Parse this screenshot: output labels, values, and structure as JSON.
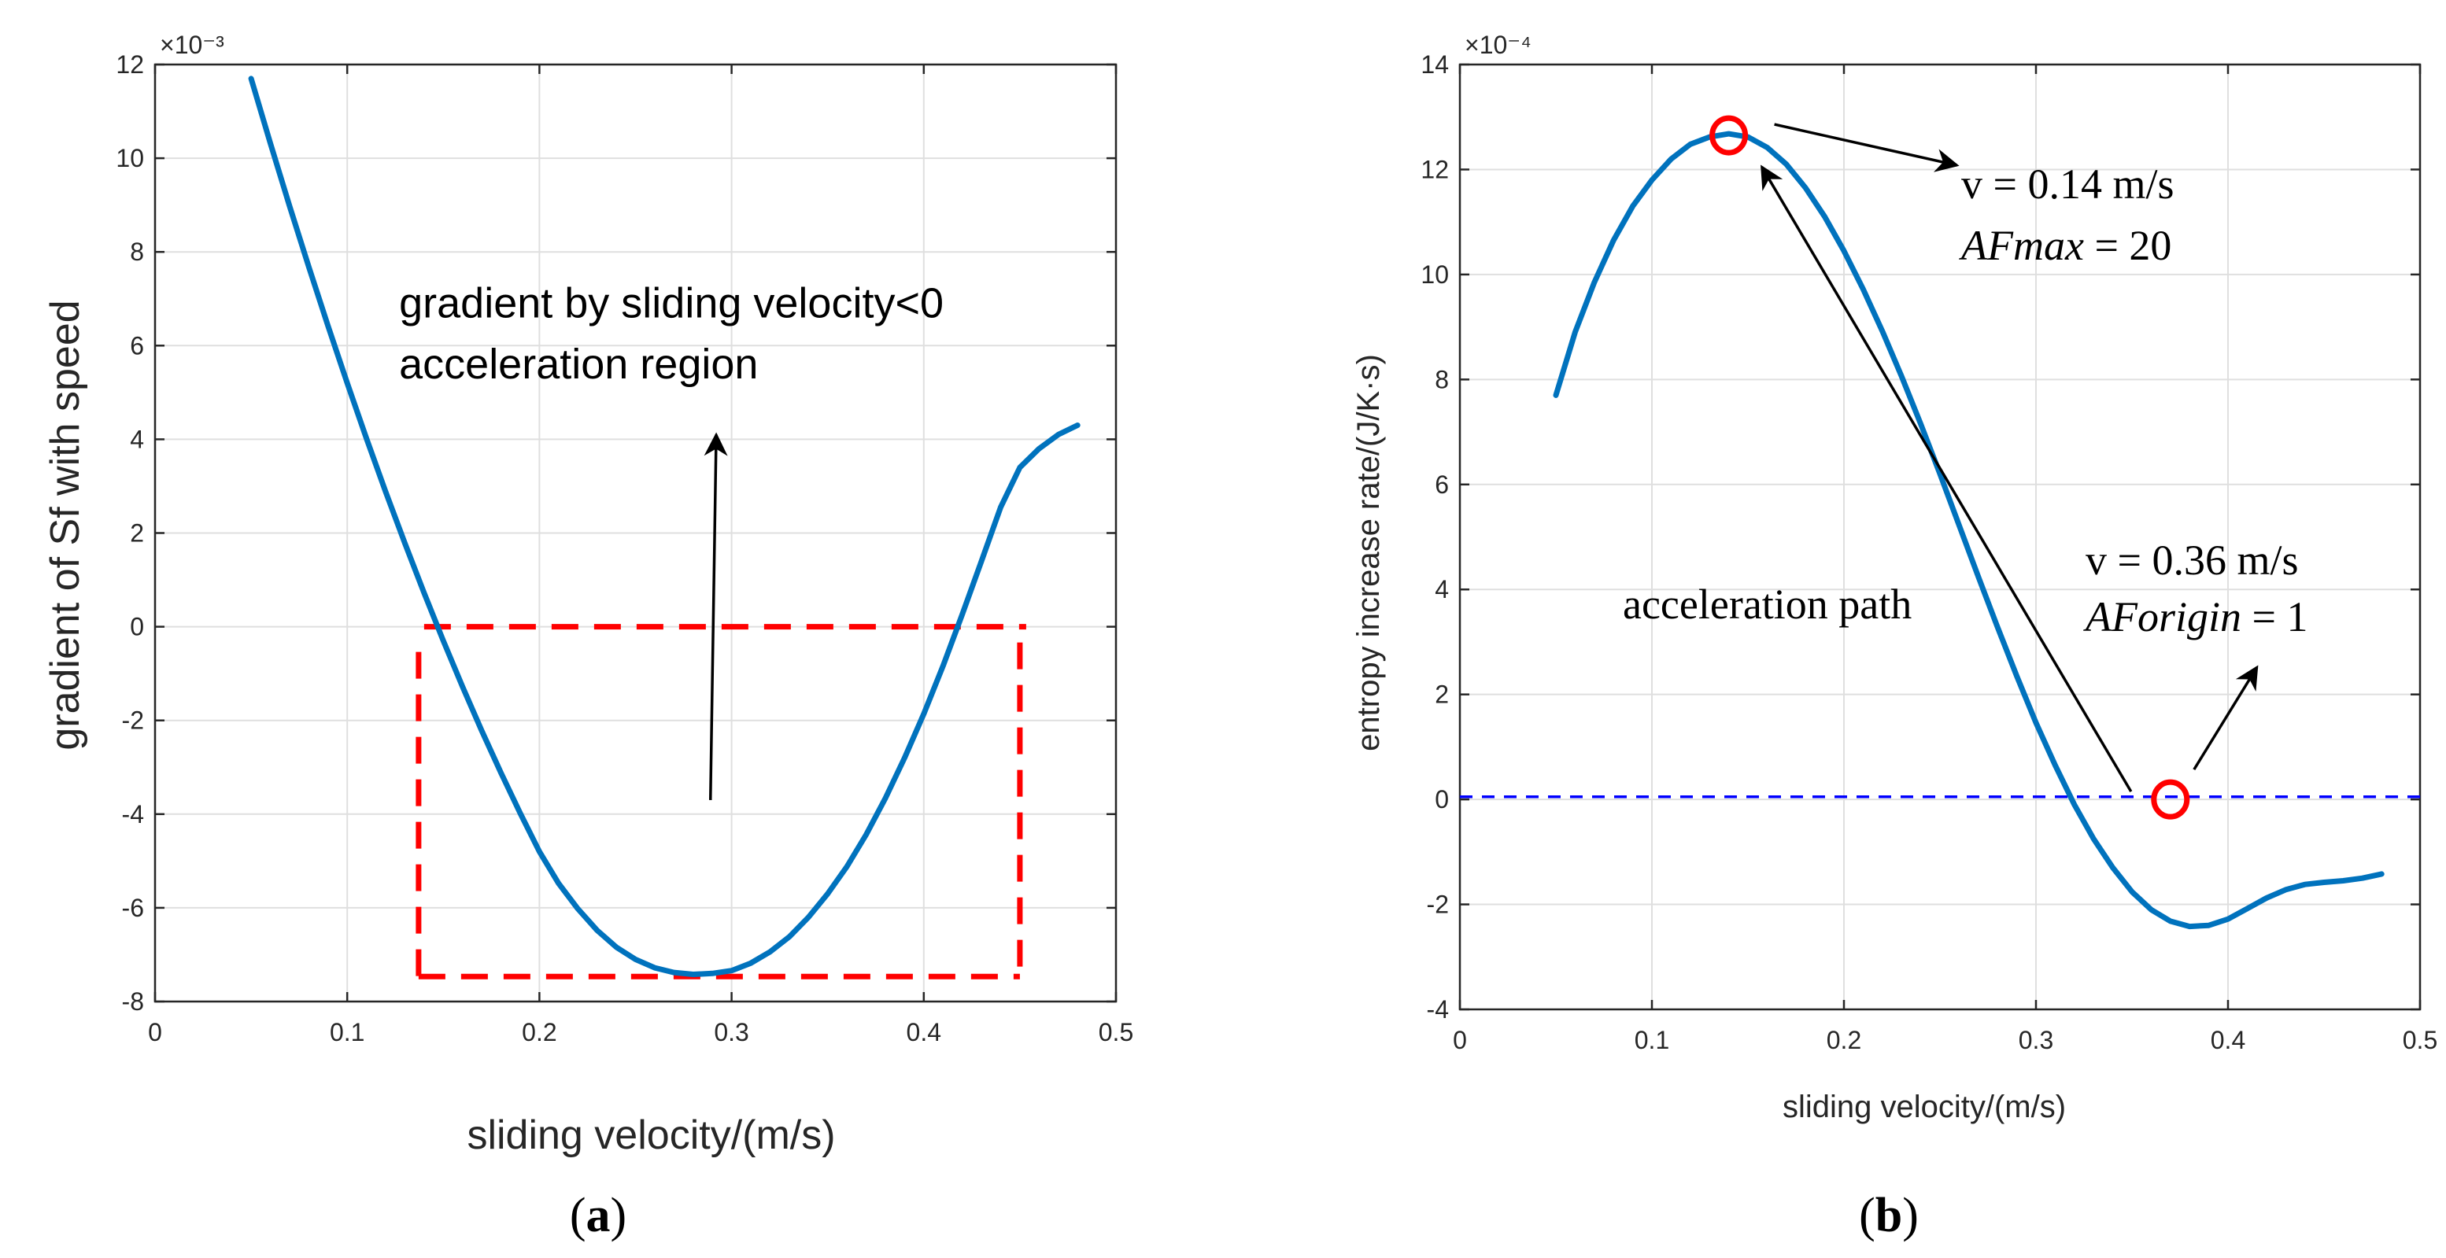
{
  "chart_data": [
    {
      "type": "line",
      "panel_label": "(a)",
      "xlabel": "sliding velocity/(m/s)",
      "ylabel": "gradient of Sf with speed",
      "xlim": [
        0,
        0.5
      ],
      "ylim": [
        -8,
        12
      ],
      "y_scale_label": "×10⁻³",
      "xticks": [
        "0",
        "0.1",
        "0.2",
        "0.3",
        "0.4",
        "0.5"
      ],
      "yticks": [
        "-8",
        "-6",
        "-4",
        "-2",
        "0",
        "2",
        "4",
        "6",
        "8",
        "10",
        "12"
      ],
      "grid": true,
      "series": [
        {
          "name": "gradient",
          "color": "#0072BD",
          "x": [
            0.05,
            0.06,
            0.07,
            0.08,
            0.09,
            0.1,
            0.11,
            0.12,
            0.13,
            0.14,
            0.15,
            0.16,
            0.17,
            0.18,
            0.19,
            0.2,
            0.21,
            0.22,
            0.23,
            0.24,
            0.25,
            0.26,
            0.27,
            0.28,
            0.29,
            0.3,
            0.31,
            0.32,
            0.33,
            0.34,
            0.35,
            0.36,
            0.37,
            0.38,
            0.39,
            0.4,
            0.41,
            0.42,
            0.43,
            0.44,
            0.45,
            0.46,
            0.47,
            0.48
          ],
          "values": [
            11.7,
            10.32,
            8.98,
            7.68,
            6.42,
            5.2,
            4.02,
            2.88,
            1.78,
            0.72,
            -0.3,
            -1.28,
            -2.22,
            -3.12,
            -3.98,
            -4.8,
            -5.48,
            -6.02,
            -6.48,
            -6.84,
            -7.1,
            -7.28,
            -7.38,
            -7.42,
            -7.4,
            -7.34,
            -7.18,
            -6.94,
            -6.62,
            -6.2,
            -5.7,
            -5.12,
            -4.44,
            -3.66,
            -2.8,
            -1.86,
            -0.84,
            0.26,
            1.4,
            2.55,
            3.4,
            3.8,
            4.1,
            4.3
          ]
        }
      ],
      "highlight_box": {
        "x": [
          0.14,
          0.45
        ],
        "y": [
          -7.4,
          0
        ],
        "color": "#ff0000"
      },
      "annotations": [
        {
          "text": "gradient by sliding velocity<0",
          "x": 0.127,
          "y": 6.6
        },
        {
          "text": "acceleration region",
          "x": 0.127,
          "y": 5.3
        }
      ],
      "arrow": {
        "from": [
          0.289,
          -3.7
        ],
        "to": [
          0.292,
          4.1
        ]
      }
    },
    {
      "type": "line",
      "panel_label": "(b)",
      "xlabel": "sliding velocity/(m/s)",
      "ylabel": "entropy increase rate/(J/K·s)",
      "xlim": [
        0,
        0.5
      ],
      "ylim": [
        -4,
        14
      ],
      "y_scale_label": "×10⁻⁴",
      "xticks": [
        "0",
        "0.1",
        "0.2",
        "0.3",
        "0.4",
        "0.5"
      ],
      "yticks": [
        "-4",
        "-2",
        "0",
        "2",
        "4",
        "6",
        "8",
        "10",
        "12",
        "14"
      ],
      "grid": true,
      "series": [
        {
          "name": "entropy rate",
          "color": "#0072BD",
          "x": [
            0.05,
            0.06,
            0.07,
            0.08,
            0.09,
            0.1,
            0.11,
            0.12,
            0.13,
            0.14,
            0.15,
            0.16,
            0.17,
            0.18,
            0.19,
            0.2,
            0.21,
            0.22,
            0.23,
            0.24,
            0.25,
            0.26,
            0.27,
            0.28,
            0.29,
            0.3,
            0.31,
            0.32,
            0.33,
            0.34,
            0.35,
            0.36,
            0.37,
            0.38,
            0.39,
            0.4,
            0.41,
            0.42,
            0.43,
            0.44,
            0.45,
            0.46,
            0.47,
            0.48
          ],
          "values": [
            7.7,
            8.9,
            9.85,
            10.65,
            11.3,
            11.8,
            12.2,
            12.48,
            12.62,
            12.68,
            12.62,
            12.42,
            12.1,
            11.65,
            11.1,
            10.45,
            9.72,
            8.92,
            8.06,
            7.15,
            6.2,
            5.22,
            4.24,
            3.28,
            2.35,
            1.46,
            0.65,
            -0.1,
            -0.75,
            -1.3,
            -1.76,
            -2.1,
            -2.32,
            -2.42,
            -2.4,
            -2.28,
            -2.08,
            -1.88,
            -1.72,
            -1.62,
            -1.58,
            -1.55,
            -1.5,
            -1.42
          ]
        },
        {
          "name": "zero reference",
          "color": "#0000ff",
          "x": [
            0.0,
            0.5
          ],
          "values": [
            0.05,
            0.05
          ]
        }
      ],
      "markers": [
        {
          "x": 0.14,
          "y": 12.65,
          "color": "#ff0000"
        },
        {
          "x": 0.37,
          "y": 0.0,
          "color": "#ff0000"
        }
      ],
      "annotations": {
        "point_max": {
          "line1": "v = 0.14 m/s",
          "line2_var": "AFmax",
          "line2_val": " = 20"
        },
        "point_origin": {
          "line1": "v = 0.36 m/s",
          "line2_var": "AForigin",
          "line2_val": " = 1"
        },
        "path_label": "acceleration path"
      }
    }
  ]
}
